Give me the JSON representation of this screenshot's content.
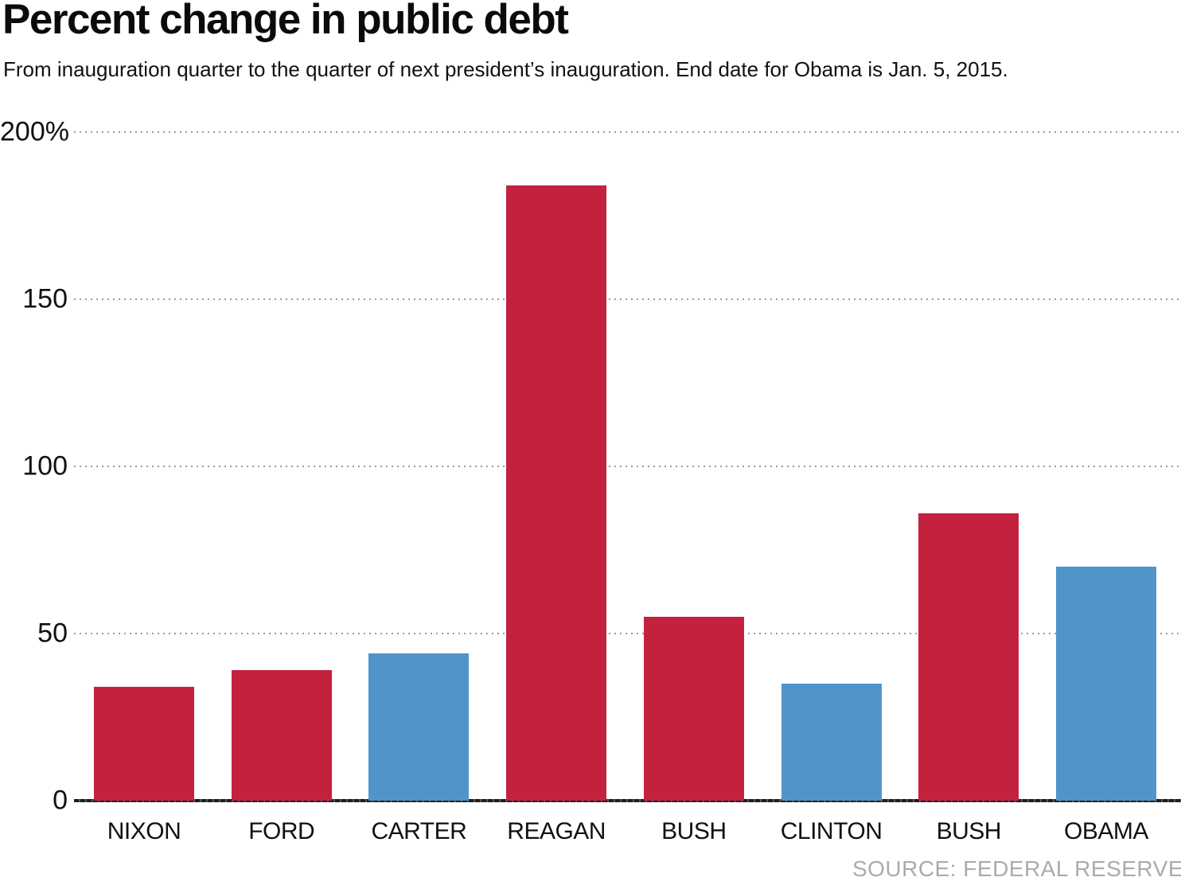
{
  "header": {
    "title": "Percent change in public debt",
    "subtitle": "From inauguration quarter to the quarter of next president’s inauguration. End date for Obama is Jan. 5, 2015."
  },
  "source": {
    "label": "SOURCE: FEDERAL RESERVE"
  },
  "chart_data": {
    "type": "bar",
    "title": "Percent change in public debt",
    "xlabel": "",
    "ylabel": "Percent change",
    "ylim": [
      0,
      200
    ],
    "grid": "horizontal-dotted",
    "legend": "none",
    "categories": [
      "NIXON",
      "FORD",
      "CARTER",
      "REAGAN",
      "BUSH",
      "CLINTON",
      "BUSH",
      "OBAMA"
    ],
    "values": [
      34,
      39,
      44,
      184,
      55,
      35,
      86,
      70
    ],
    "parties": [
      "republican",
      "republican",
      "democrat",
      "republican",
      "republican",
      "democrat",
      "republican",
      "democrat"
    ],
    "yticks": [
      {
        "label": "200%",
        "value": 200
      },
      {
        "label": "150",
        "value": 150
      },
      {
        "label": "100",
        "value": 100
      },
      {
        "label": "50",
        "value": 50
      },
      {
        "label": "0",
        "value": 0
      }
    ],
    "colors": {
      "republican": "#c4213f",
      "democrat": "#5095c9",
      "gridline": "#9b9b9b",
      "baseline": "#1f1f1f",
      "text": "#111111",
      "source_text": "#ababab"
    }
  }
}
